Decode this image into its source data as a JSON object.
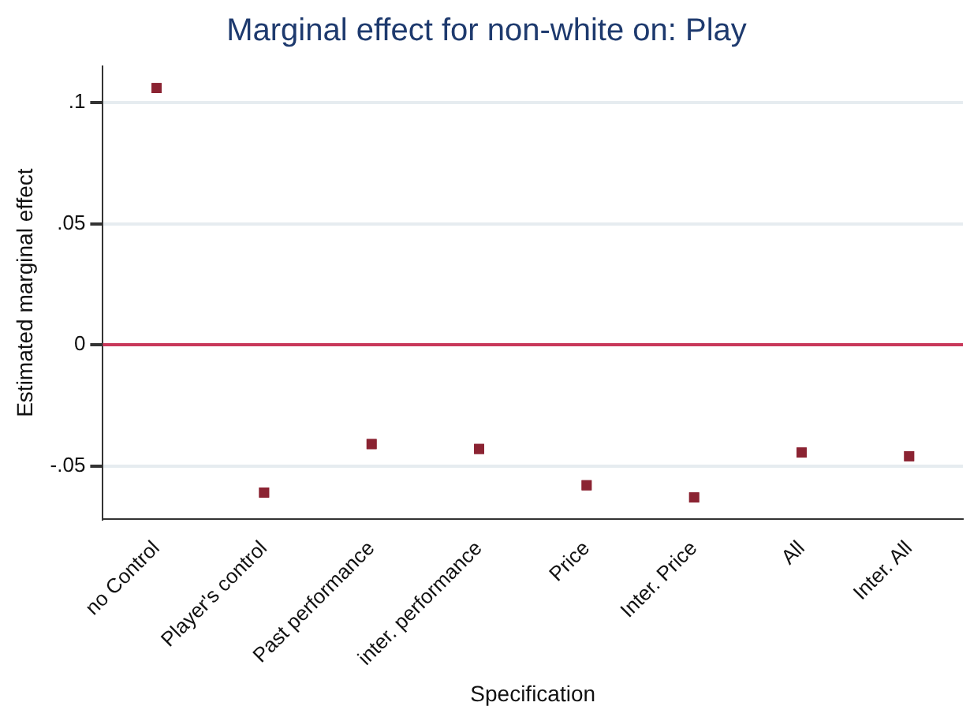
{
  "chart_data": {
    "type": "scatter",
    "title": "Marginal effect for non-white on: Play",
    "xlabel": "Specification",
    "ylabel": "Estimated marginal effect",
    "categories": [
      "no Control",
      "Player's control",
      "Past performance",
      "inter. performance",
      "Price",
      "Inter. Price",
      "All",
      "Inter. All"
    ],
    "series": [
      {
        "color": "#8b2332",
        "values": [
          0.106,
          -0.061,
          -0.041,
          -0.043,
          -0.058,
          -0.063,
          -0.0445,
          -0.046
        ]
      }
    ],
    "ylim": [
      -0.072,
      0.115
    ],
    "yticks": [
      {
        "value": -0.05,
        "label": "-.05"
      },
      0,
      {
        "value": 0.05,
        "label": ".05"
      },
      {
        "value": 0.1,
        "label": ".1"
      }
    ],
    "ref_lines": [
      {
        "axis": "y",
        "value": 0,
        "color": "#c8385a"
      }
    ],
    "grid": "y",
    "marker": "square",
    "legend": false
  }
}
